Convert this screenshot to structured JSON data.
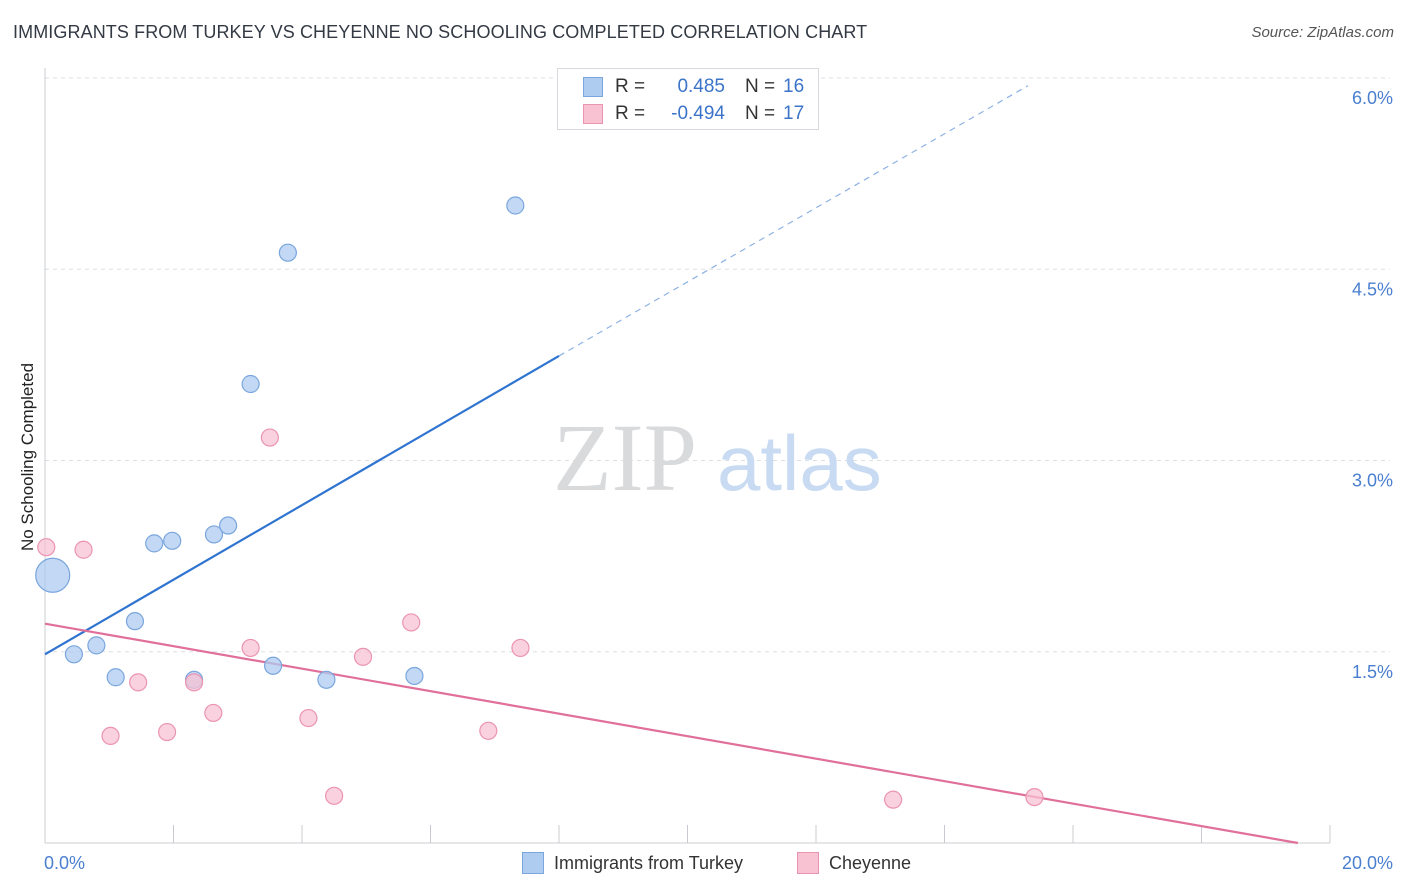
{
  "header": {
    "title": "IMMIGRANTS FROM TURKEY VS CHEYENNE NO SCHOOLING COMPLETED CORRELATION CHART",
    "source": "Source: ZipAtlas.com"
  },
  "watermark": {
    "zip": "ZIP",
    "atlas": "atlas"
  },
  "legend": {
    "rows": [
      {
        "r_label": "R =",
        "r_value": "0.485",
        "n_label": "N =",
        "n_value": "16",
        "color": "#aecbf0",
        "border": "#7aa6dd"
      },
      {
        "r_label": "R =",
        "r_value": "-0.494",
        "n_label": "N =",
        "n_value": "17",
        "color": "#f8c2d3",
        "border": "#eb94b1"
      }
    ]
  },
  "chart_data": {
    "type": "scatter",
    "title": "IMMIGRANTS FROM TURKEY VS CHEYENNE NO SCHOOLING COMPLETED CORRELATION CHART",
    "ylabel": "No Schooling Completed",
    "xlabel": "",
    "xlim": [
      0,
      20
    ],
    "ylim": [
      0,
      6
    ],
    "x_tick_labels": [
      "0.0%",
      "20.0%"
    ],
    "y_ticks": [
      1.5,
      3.0,
      4.5,
      6.0
    ],
    "y_tick_labels": [
      "1.5%",
      "3.0%",
      "4.5%",
      "6.0%"
    ],
    "grid": true,
    "legend_position": "top-center",
    "series": [
      {
        "name": "Immigrants from Turkey",
        "color": "#7aa6dd",
        "fill": "#aecbf0",
        "points": [
          {
            "x": 0.12,
            "y": 2.1,
            "size": "large"
          },
          {
            "x": 0.45,
            "y": 1.48
          },
          {
            "x": 0.8,
            "y": 1.55
          },
          {
            "x": 1.1,
            "y": 1.3
          },
          {
            "x": 1.4,
            "y": 1.74
          },
          {
            "x": 1.7,
            "y": 2.35
          },
          {
            "x": 1.98,
            "y": 2.37
          },
          {
            "x": 2.32,
            "y": 1.28
          },
          {
            "x": 2.63,
            "y": 2.42
          },
          {
            "x": 2.85,
            "y": 2.49
          },
          {
            "x": 3.2,
            "y": 3.6
          },
          {
            "x": 3.55,
            "y": 1.39
          },
          {
            "x": 3.78,
            "y": 4.63
          },
          {
            "x": 4.38,
            "y": 1.28
          },
          {
            "x": 5.75,
            "y": 1.31
          },
          {
            "x": 7.32,
            "y": 5.0
          }
        ],
        "trend": {
          "x0": 0,
          "y0": 1.48,
          "x1": 8.0,
          "y1": 3.82,
          "dashed_to_x": 15.3,
          "dashed_to_y": 5.94
        }
      },
      {
        "name": "Cheyenne",
        "color": "#eb94b1",
        "fill": "#f8c2d3",
        "points": [
          {
            "x": 0.02,
            "y": 2.32
          },
          {
            "x": 0.6,
            "y": 2.3
          },
          {
            "x": 1.02,
            "y": 0.84
          },
          {
            "x": 1.45,
            "y": 1.26
          },
          {
            "x": 1.9,
            "y": 0.87
          },
          {
            "x": 2.32,
            "y": 1.26
          },
          {
            "x": 2.62,
            "y": 1.02
          },
          {
            "x": 3.2,
            "y": 1.53
          },
          {
            "x": 3.5,
            "y": 3.18
          },
          {
            "x": 4.1,
            "y": 0.98
          },
          {
            "x": 4.5,
            "y": 0.37
          },
          {
            "x": 4.95,
            "y": 1.46
          },
          {
            "x": 5.7,
            "y": 1.73
          },
          {
            "x": 6.9,
            "y": 0.88
          },
          {
            "x": 7.4,
            "y": 1.53
          },
          {
            "x": 13.2,
            "y": 0.34
          },
          {
            "x": 15.4,
            "y": 0.36
          }
        ],
        "trend": {
          "x0": 0,
          "y0": 1.72,
          "x1": 19.5,
          "y1": 0.0
        }
      }
    ]
  },
  "bottom_legend": {
    "items": [
      {
        "label": "Immigrants from Turkey",
        "color": "#aecbf0",
        "border": "#7aa6dd"
      },
      {
        "label": "Cheyenne",
        "color": "#f8c2d3",
        "border": "#eb94b1"
      }
    ]
  }
}
